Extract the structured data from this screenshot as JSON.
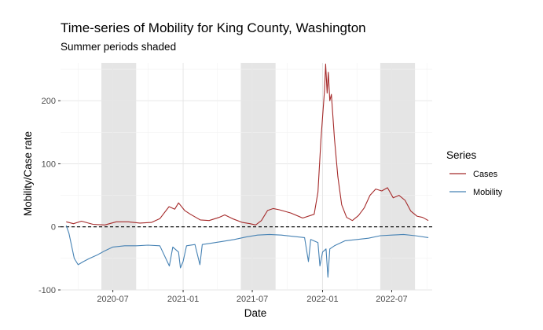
{
  "chart_data": {
    "type": "line",
    "title": "Time-series of Mobility for King County, Washington",
    "subtitle": "Summer periods shaded",
    "xlabel": "Date",
    "ylabel": "Mobility/Case rate",
    "xlim": [
      "2020-02-15",
      "2022-10-15"
    ],
    "ylim": [
      -100,
      260
    ],
    "x_ticks": [
      "2020-07",
      "2021-01",
      "2021-07",
      "2022-01",
      "2022-07"
    ],
    "y_ticks": [
      -100,
      0,
      100,
      200
    ],
    "grid": true,
    "reference_line": {
      "y": 0,
      "style": "dashed"
    },
    "shaded_periods": [
      {
        "start": "2020-06-01",
        "end": "2020-08-31"
      },
      {
        "start": "2021-06-01",
        "end": "2021-08-31"
      },
      {
        "start": "2022-06-01",
        "end": "2022-08-31"
      }
    ],
    "legend": {
      "title": "Series",
      "position": "right"
    },
    "series": [
      {
        "name": "Cases",
        "color": "#a52a2a",
        "points": [
          [
            "2020-03-01",
            8
          ],
          [
            "2020-03-20",
            5
          ],
          [
            "2020-04-10",
            9
          ],
          [
            "2020-05-10",
            4
          ],
          [
            "2020-06-10",
            3
          ],
          [
            "2020-07-10",
            8
          ],
          [
            "2020-08-10",
            8
          ],
          [
            "2020-09-10",
            6
          ],
          [
            "2020-10-10",
            7
          ],
          [
            "2020-11-01",
            13
          ],
          [
            "2020-11-25",
            32
          ],
          [
            "2020-12-10",
            28
          ],
          [
            "2020-12-20",
            38
          ],
          [
            "2021-01-05",
            26
          ],
          [
            "2021-01-20",
            20
          ],
          [
            "2021-02-15",
            11
          ],
          [
            "2021-03-10",
            10
          ],
          [
            "2021-04-05",
            15
          ],
          [
            "2021-04-20",
            19
          ],
          [
            "2021-05-10",
            13
          ],
          [
            "2021-06-05",
            7
          ],
          [
            "2021-06-25",
            5
          ],
          [
            "2021-07-10",
            3
          ],
          [
            "2021-07-25",
            10
          ],
          [
            "2021-08-10",
            26
          ],
          [
            "2021-08-25",
            29
          ],
          [
            "2021-09-10",
            27
          ],
          [
            "2021-10-10",
            22
          ],
          [
            "2021-11-10",
            14
          ],
          [
            "2021-12-10",
            20
          ],
          [
            "2021-12-20",
            55
          ],
          [
            "2021-12-28",
            140
          ],
          [
            "2022-01-06",
            215
          ],
          [
            "2022-01-09",
            258
          ],
          [
            "2022-01-13",
            212
          ],
          [
            "2022-01-16",
            245
          ],
          [
            "2022-01-20",
            200
          ],
          [
            "2022-01-24",
            210
          ],
          [
            "2022-02-01",
            140
          ],
          [
            "2022-02-10",
            80
          ],
          [
            "2022-02-20",
            35
          ],
          [
            "2022-03-05",
            15
          ],
          [
            "2022-03-20",
            10
          ],
          [
            "2022-04-05",
            18
          ],
          [
            "2022-04-20",
            30
          ],
          [
            "2022-05-05",
            50
          ],
          [
            "2022-05-20",
            60
          ],
          [
            "2022-06-05",
            57
          ],
          [
            "2022-06-20",
            62
          ],
          [
            "2022-07-05",
            46
          ],
          [
            "2022-07-20",
            50
          ],
          [
            "2022-08-05",
            42
          ],
          [
            "2022-08-20",
            25
          ],
          [
            "2022-09-05",
            17
          ],
          [
            "2022-09-20",
            15
          ],
          [
            "2022-10-05",
            10
          ]
        ]
      },
      {
        "name": "Mobility",
        "color": "#4682b4",
        "points": [
          [
            "2020-03-01",
            2
          ],
          [
            "2020-03-08",
            -10
          ],
          [
            "2020-03-15",
            -30
          ],
          [
            "2020-03-22",
            -50
          ],
          [
            "2020-04-01",
            -60
          ],
          [
            "2020-04-15",
            -55
          ],
          [
            "2020-05-01",
            -50
          ],
          [
            "2020-05-20",
            -45
          ],
          [
            "2020-06-10",
            -38
          ],
          [
            "2020-07-01",
            -32
          ],
          [
            "2020-08-01",
            -30
          ],
          [
            "2020-09-01",
            -30
          ],
          [
            "2020-10-01",
            -29
          ],
          [
            "2020-11-01",
            -30
          ],
          [
            "2020-11-26",
            -62
          ],
          [
            "2020-12-05",
            -32
          ],
          [
            "2020-12-20",
            -40
          ],
          [
            "2020-12-25",
            -65
          ],
          [
            "2021-01-01",
            -55
          ],
          [
            "2021-01-10",
            -30
          ],
          [
            "2021-02-01",
            -28
          ],
          [
            "2021-02-14",
            -60
          ],
          [
            "2021-02-20",
            -28
          ],
          [
            "2021-03-15",
            -26
          ],
          [
            "2021-04-15",
            -23
          ],
          [
            "2021-05-15",
            -20
          ],
          [
            "2021-06-15",
            -16
          ],
          [
            "2021-07-15",
            -13
          ],
          [
            "2021-08-15",
            -12
          ],
          [
            "2021-09-15",
            -13
          ],
          [
            "2021-10-15",
            -15
          ],
          [
            "2021-11-15",
            -17
          ],
          [
            "2021-11-25",
            -55
          ],
          [
            "2021-12-01",
            -20
          ],
          [
            "2021-12-20",
            -25
          ],
          [
            "2021-12-25",
            -62
          ],
          [
            "2022-01-01",
            -40
          ],
          [
            "2022-01-10",
            -35
          ],
          [
            "2022-01-15",
            -80
          ],
          [
            "2022-01-20",
            -35
          ],
          [
            "2022-02-01",
            -30
          ],
          [
            "2022-03-01",
            -22
          ],
          [
            "2022-04-01",
            -20
          ],
          [
            "2022-05-01",
            -18
          ],
          [
            "2022-06-01",
            -14
          ],
          [
            "2022-07-01",
            -13
          ],
          [
            "2022-08-01",
            -12
          ],
          [
            "2022-09-01",
            -14
          ],
          [
            "2022-10-05",
            -17
          ]
        ]
      }
    ]
  }
}
